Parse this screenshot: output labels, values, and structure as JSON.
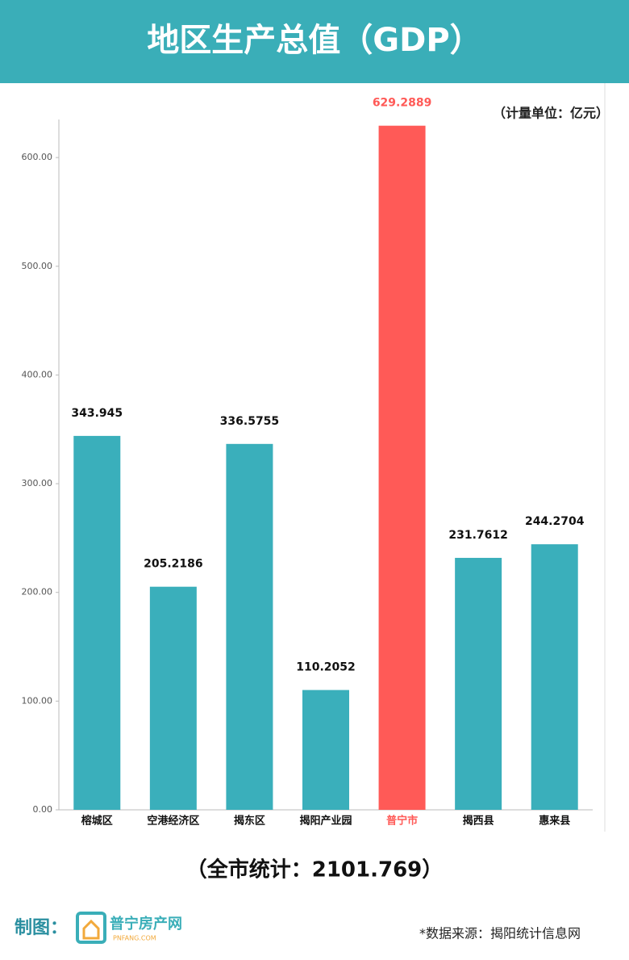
{
  "chart_data": {
    "type": "bar",
    "title": "地区生产总值（GDP）",
    "unit_note": "（计量单位：亿元）",
    "categories": [
      "榕城区",
      "空港经济区",
      "揭东区",
      "揭阳产业园",
      "普宁市",
      "揭西县",
      "惠来县"
    ],
    "values": [
      343.945,
      205.2186,
      336.5755,
      110.2052,
      629.2889,
      231.7612,
      244.2704
    ],
    "color": "#3aafbb",
    "colors": [
      "#3aafbb",
      "#3aafbb",
      "#3aafbb",
      "#3aafbb",
      "#ff5a57",
      "#3aafbb",
      "#3aafbb"
    ],
    "ylim": [
      0,
      635
    ],
    "yticks": [
      {
        "value": 0,
        "label": "0.00"
      },
      {
        "value": 100,
        "label": "100.00"
      },
      {
        "value": 200,
        "label": "200.00"
      },
      {
        "value": 300,
        "label": "300.00"
      },
      {
        "value": 400,
        "label": "400.00"
      },
      {
        "value": 500,
        "label": "500.00"
      },
      {
        "value": 600,
        "label": "600.00"
      }
    ],
    "total": "（全市统计：2101.769）"
  },
  "footer": {
    "credit": "制图：",
    "logo_name": "普宁房产网",
    "logo_url": "PNFANG.COM",
    "source": "*数据来源：揭阳统计信息网"
  }
}
